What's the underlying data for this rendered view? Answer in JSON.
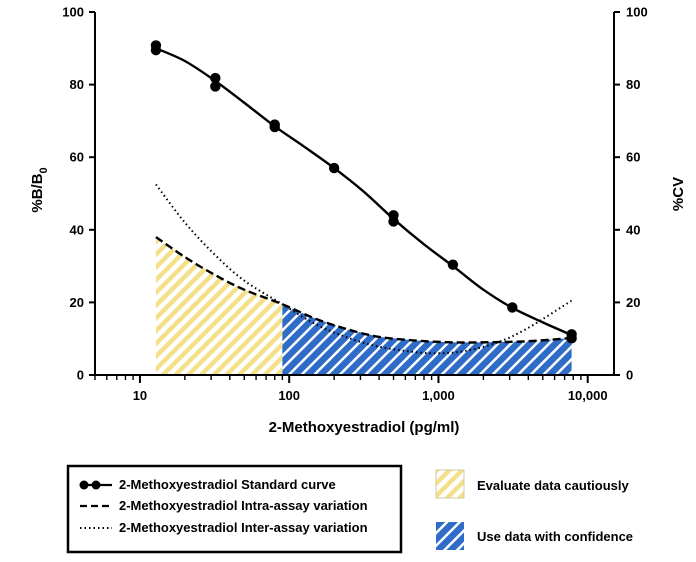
{
  "chart_data": {
    "type": "line",
    "xlabel": "2-Methoxyestradiol (pg/ml)",
    "ylabel": "%B/B",
    "ylabel_sub": "0",
    "y2label": "%CV",
    "xscale": "log",
    "xlim": [
      5,
      15000
    ],
    "ylim": [
      0,
      100
    ],
    "y2lim": [
      0,
      100
    ],
    "x_ticks": [
      10,
      100,
      1000,
      10000
    ],
    "x_tick_labels": [
      "10",
      "100",
      "1,000",
      "10,000"
    ],
    "y_ticks": [
      0,
      20,
      40,
      60,
      80,
      100
    ],
    "y_tick_labels": [
      "0",
      "20",
      "40",
      "60",
      "80",
      "100"
    ],
    "y2_ticks": [
      0,
      20,
      40,
      60,
      80,
      100
    ],
    "y2_tick_labels": [
      "0",
      "20",
      "40",
      "60",
      "80",
      "100"
    ],
    "grid": false,
    "colors": {
      "caution_stripe": "#f5e08a",
      "confidence_fill": "#2f6cc8",
      "confidence_stripe": "#ffffff",
      "line": "#000000"
    },
    "series": [
      {
        "name": "2-Methoxyestradiol Standard curve",
        "style": "solid-markers",
        "points": [
          [
            12.8,
            89.5
          ],
          [
            12.8,
            90.8
          ],
          [
            32,
            81.8
          ],
          [
            32,
            79.5
          ],
          [
            80,
            69
          ],
          [
            80,
            68.3
          ],
          [
            200,
            57
          ],
          [
            500,
            44
          ],
          [
            500,
            42.3
          ],
          [
            1250,
            30.4
          ],
          [
            3125,
            18.6
          ],
          [
            7800,
            11.2
          ],
          [
            7800,
            10.1
          ]
        ],
        "curve": [
          [
            12.8,
            90
          ],
          [
            20,
            86.5
          ],
          [
            32,
            81
          ],
          [
            50,
            75
          ],
          [
            80,
            68.5
          ],
          [
            125,
            63
          ],
          [
            200,
            57
          ],
          [
            316,
            50.5
          ],
          [
            500,
            43
          ],
          [
            800,
            36
          ],
          [
            1250,
            30
          ],
          [
            2000,
            23.5
          ],
          [
            3125,
            18.5
          ],
          [
            5000,
            14.5
          ],
          [
            7800,
            11
          ]
        ]
      },
      {
        "name": "2-Methoxyestradiol Intra-assay variation",
        "style": "dashed",
        "curve": [
          [
            12.8,
            38
          ],
          [
            20,
            32.5
          ],
          [
            32,
            27.5
          ],
          [
            50,
            23.5
          ],
          [
            90,
            19.5
          ],
          [
            150,
            15.5
          ],
          [
            250,
            12.5
          ],
          [
            400,
            10.5
          ],
          [
            700,
            9.5
          ],
          [
            1200,
            9
          ],
          [
            2000,
            9
          ],
          [
            4000,
            9.3
          ],
          [
            7800,
            10.2
          ]
        ]
      },
      {
        "name": "2-Methoxyestradiol Inter-assay variation",
        "style": "dotted",
        "curve": [
          [
            12.8,
            52.5
          ],
          [
            20,
            42
          ],
          [
            32,
            33
          ],
          [
            50,
            26
          ],
          [
            90,
            19.5
          ],
          [
            150,
            14
          ],
          [
            250,
            10.2
          ],
          [
            400,
            7.8
          ],
          [
            700,
            6.3
          ],
          [
            1000,
            6
          ],
          [
            1500,
            6.6
          ],
          [
            2500,
            9
          ],
          [
            4000,
            13
          ],
          [
            7800,
            20.5
          ]
        ]
      }
    ],
    "regions": [
      {
        "name": "Evaluate data cautiously",
        "x_range": [
          12.8,
          90
        ],
        "pattern": "yellow-hatch"
      },
      {
        "name": "Use data with confidence",
        "x_range": [
          90,
          7800
        ],
        "pattern": "blue-hatch"
      }
    ]
  }
}
